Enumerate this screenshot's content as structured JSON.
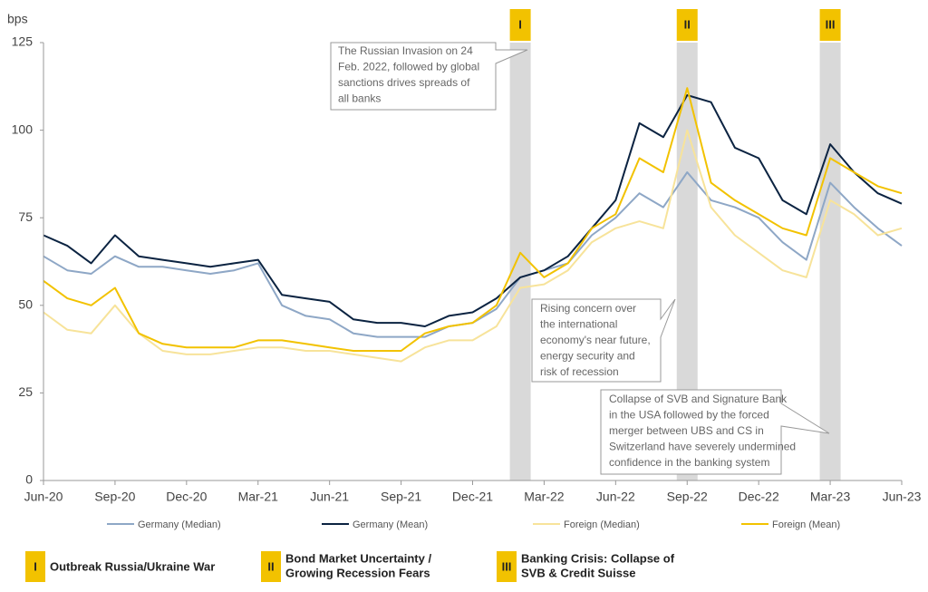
{
  "chart_data": {
    "type": "line",
    "y_label": "bps",
    "x": [
      "Jun-20",
      "Jul-20",
      "Aug-20",
      "Sep-20",
      "Oct-20",
      "Nov-20",
      "Dec-20",
      "Jan-21",
      "Feb-21",
      "Mar-21",
      "Apr-21",
      "May-21",
      "Jun-21",
      "Jul-21",
      "Aug-21",
      "Sep-21",
      "Oct-21",
      "Nov-21",
      "Dec-21",
      "Jan-22",
      "Feb-22",
      "Mar-22",
      "Apr-22",
      "May-22",
      "Jun-22",
      "Jul-22",
      "Aug-22",
      "Sep-22",
      "Oct-22",
      "Nov-22",
      "Dec-22",
      "Jan-23",
      "Feb-23",
      "Mar-23",
      "Apr-23",
      "May-23",
      "Jun-23"
    ],
    "xticks": [
      "Jun-20",
      "Sep-20",
      "Dec-20",
      "Mar-21",
      "Jun-21",
      "Sep-21",
      "Dec-21",
      "Mar-22",
      "Jun-22",
      "Sep-22",
      "Dec-22",
      "Mar-23",
      "Jun-23"
    ],
    "ylim": [
      0,
      125
    ],
    "yticks": [
      0,
      25,
      50,
      75,
      100,
      125
    ],
    "grid": false,
    "series": [
      {
        "name": "Germany (Median)",
        "color": "#8ea7c6",
        "values": [
          64,
          60,
          59,
          64,
          61,
          61,
          60,
          59,
          60,
          62,
          50,
          47,
          46,
          42,
          41,
          41,
          41,
          44,
          45,
          49,
          58,
          60,
          62,
          70,
          75,
          82,
          78,
          88,
          80,
          78,
          75,
          68,
          63,
          85,
          78,
          72,
          67
        ]
      },
      {
        "name": "Germany (Mean)",
        "color": "#0b2341",
        "values": [
          70,
          67,
          62,
          70,
          64,
          63,
          62,
          61,
          62,
          63,
          53,
          52,
          51,
          46,
          45,
          45,
          44,
          47,
          48,
          52,
          58,
          60,
          64,
          72,
          80,
          102,
          98,
          110,
          108,
          95,
          92,
          80,
          76,
          96,
          88,
          82,
          79
        ]
      },
      {
        "name": "Foreign (Median)",
        "color": "#f7e39a",
        "values": [
          48,
          43,
          42,
          50,
          42,
          37,
          36,
          36,
          37,
          38,
          38,
          37,
          37,
          36,
          35,
          34,
          38,
          40,
          40,
          44,
          55,
          56,
          60,
          68,
          72,
          74,
          72,
          100,
          78,
          70,
          65,
          60,
          58,
          80,
          76,
          70,
          72
        ]
      },
      {
        "name": "Foreign (Mean)",
        "color": "#f2c200",
        "values": [
          57,
          52,
          50,
          55,
          42,
          39,
          38,
          38,
          38,
          40,
          40,
          39,
          38,
          37,
          37,
          37,
          42,
          44,
          45,
          50,
          65,
          58,
          62,
          72,
          76,
          92,
          88,
          112,
          85,
          80,
          76,
          72,
          70,
          92,
          88,
          84,
          82
        ]
      }
    ],
    "events": [
      {
        "marker": "I",
        "month": "Feb-22",
        "lines": [
          "Outbreak Russia/Ukraine War"
        ]
      },
      {
        "marker": "II",
        "month": "Sep-22",
        "lines": [
          "Bond Market Uncertainty /",
          "Growing Recession Fears"
        ]
      },
      {
        "marker": "III",
        "month": "Mar-23",
        "lines": [
          "Banking Crisis: Collapse of",
          "SVB & Credit Suisse"
        ]
      }
    ],
    "annotations": [
      [
        "The Russian Invasion on 24",
        "Feb. 2022, followed by global",
        "sanctions drives spreads of",
        "all banks"
      ],
      [
        "Rising concern over",
        "the international",
        "economy's near future,",
        "energy security and",
        "risk of recession"
      ],
      [
        "Collapse of SVB and Signature Bank",
        "in the USA followed by the forced",
        "merger between UBS and CS in",
        "Switzerland have severely undermined",
        "confidence in the banking system"
      ]
    ]
  }
}
